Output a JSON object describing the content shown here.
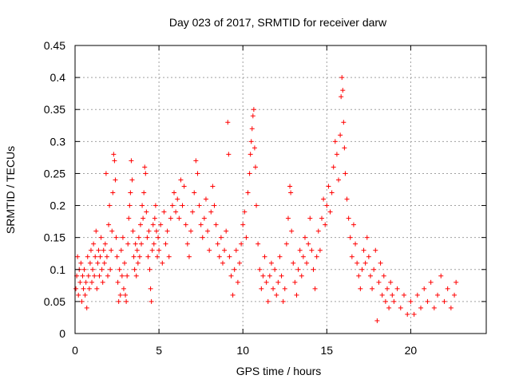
{
  "chart_data": {
    "type": "scatter",
    "title": "Day 023 of 2017, SRMTID for receiver darw",
    "xlabel": "GPS time / hours",
    "ylabel": "SRMTID / TECUs",
    "xlim": [
      0,
      24.5
    ],
    "ylim": [
      0,
      0.45
    ],
    "xticks": [
      0,
      5,
      10,
      15,
      20
    ],
    "xtick_labels": [
      "0",
      "5",
      "10",
      "15",
      "20"
    ],
    "yticks": [
      0,
      0.05,
      0.1,
      0.15,
      0.2,
      0.25,
      0.3,
      0.35,
      0.4,
      0.45
    ],
    "ytick_labels": [
      "0",
      "0.05",
      "0.1",
      "0.15",
      "0.2",
      "0.25",
      "0.3",
      "0.35",
      "0.4",
      "0.45"
    ],
    "grid": true,
    "marker": "+",
    "marker_color": "#ff0000",
    "series": [
      {
        "name": "SRMTID",
        "points": [
          [
            0.05,
            0.07
          ],
          [
            0.1,
            0.09
          ],
          [
            0.15,
            0.12
          ],
          [
            0.2,
            0.06
          ],
          [
            0.25,
            0.1
          ],
          [
            0.3,
            0.08
          ],
          [
            0.35,
            0.11
          ],
          [
            0.4,
            0.05
          ],
          [
            0.45,
            0.09
          ],
          [
            0.5,
            0.07
          ],
          [
            0.55,
            0.1
          ],
          [
            0.6,
            0.06
          ],
          [
            0.65,
            0.08
          ],
          [
            0.7,
            0.04
          ],
          [
            0.75,
            0.12
          ],
          [
            0.8,
            0.09
          ],
          [
            0.85,
            0.07
          ],
          [
            0.9,
            0.11
          ],
          [
            0.95,
            0.13
          ],
          [
            1.0,
            0.08
          ],
          [
            1.05,
            0.1
          ],
          [
            1.1,
            0.14
          ],
          [
            1.15,
            0.09
          ],
          [
            1.2,
            0.12
          ],
          [
            1.25,
            0.16
          ],
          [
            1.3,
            0.07
          ],
          [
            1.35,
            0.11
          ],
          [
            1.4,
            0.13
          ],
          [
            1.45,
            0.09
          ],
          [
            1.5,
            0.12
          ],
          [
            1.55,
            0.15
          ],
          [
            1.6,
            0.1
          ],
          [
            1.65,
            0.08
          ],
          [
            1.7,
            0.13
          ],
          [
            1.75,
            0.11
          ],
          [
            1.8,
            0.14
          ],
          [
            1.85,
            0.25
          ],
          [
            1.9,
            0.12
          ],
          [
            1.95,
            0.09
          ],
          [
            2.0,
            0.17
          ],
          [
            2.05,
            0.2
          ],
          [
            2.1,
            0.1
          ],
          [
            2.15,
            0.13
          ],
          [
            2.2,
            0.16
          ],
          [
            2.25,
            0.22
          ],
          [
            2.3,
            0.28
          ],
          [
            2.35,
            0.27
          ],
          [
            2.4,
            0.24
          ],
          [
            2.45,
            0.15
          ],
          [
            2.5,
            0.12
          ],
          [
            2.55,
            0.08
          ],
          [
            2.6,
            0.05
          ],
          [
            2.65,
            0.1
          ],
          [
            2.7,
            0.06
          ],
          [
            2.75,
            0.13
          ],
          [
            2.8,
            0.09
          ],
          [
            2.85,
            0.15
          ],
          [
            2.9,
            0.07
          ],
          [
            2.95,
            0.11
          ],
          [
            3.0,
            0.06
          ],
          [
            3.05,
            0.05
          ],
          [
            3.1,
            0.09
          ],
          [
            3.15,
            0.14
          ],
          [
            3.2,
            0.18
          ],
          [
            3.25,
            0.2
          ],
          [
            3.3,
            0.22
          ],
          [
            3.35,
            0.27
          ],
          [
            3.4,
            0.24
          ],
          [
            3.45,
            0.16
          ],
          [
            3.5,
            0.12
          ],
          [
            3.55,
            0.1
          ],
          [
            3.6,
            0.14
          ],
          [
            3.65,
            0.09
          ],
          [
            3.7,
            0.13
          ],
          [
            3.75,
            0.11
          ],
          [
            3.8,
            0.15
          ],
          [
            3.85,
            0.12
          ],
          [
            3.9,
            0.17
          ],
          [
            3.95,
            0.14
          ],
          [
            4.0,
            0.2
          ],
          [
            4.05,
            0.18
          ],
          [
            4.1,
            0.22
          ],
          [
            4.15,
            0.26
          ],
          [
            4.2,
            0.25
          ],
          [
            4.25,
            0.19
          ],
          [
            4.3,
            0.15
          ],
          [
            4.35,
            0.12
          ],
          [
            4.4,
            0.16
          ],
          [
            4.45,
            0.1
          ],
          [
            4.5,
            0.07
          ],
          [
            4.55,
            0.05
          ],
          [
            4.6,
            0.13
          ],
          [
            4.65,
            0.17
          ],
          [
            4.7,
            0.14
          ],
          [
            4.75,
            0.18
          ],
          [
            4.8,
            0.2
          ],
          [
            4.85,
            0.16
          ],
          [
            4.9,
            0.12
          ],
          [
            4.95,
            0.15
          ],
          [
            5.0,
            0.13
          ],
          [
            5.1,
            0.17
          ],
          [
            5.2,
            0.11
          ],
          [
            5.3,
            0.19
          ],
          [
            5.4,
            0.14
          ],
          [
            5.5,
            0.16
          ],
          [
            5.6,
            0.12
          ],
          [
            5.7,
            0.18
          ],
          [
            5.8,
            0.2
          ],
          [
            5.9,
            0.22
          ],
          [
            6.0,
            0.19
          ],
          [
            6.1,
            0.21
          ],
          [
            6.2,
            0.18
          ],
          [
            6.3,
            0.24
          ],
          [
            6.4,
            0.2
          ],
          [
            6.5,
            0.23
          ],
          [
            6.6,
            0.17
          ],
          [
            6.7,
            0.14
          ],
          [
            6.8,
            0.12
          ],
          [
            6.9,
            0.16
          ],
          [
            7.0,
            0.19
          ],
          [
            7.1,
            0.22
          ],
          [
            7.2,
            0.27
          ],
          [
            7.3,
            0.25
          ],
          [
            7.4,
            0.2
          ],
          [
            7.5,
            0.17
          ],
          [
            7.6,
            0.15
          ],
          [
            7.7,
            0.18
          ],
          [
            7.8,
            0.21
          ],
          [
            7.9,
            0.16
          ],
          [
            8.0,
            0.13
          ],
          [
            8.1,
            0.19
          ],
          [
            8.2,
            0.23
          ],
          [
            8.3,
            0.2
          ],
          [
            8.4,
            0.17
          ],
          [
            8.5,
            0.14
          ],
          [
            8.6,
            0.12
          ],
          [
            8.7,
            0.15
          ],
          [
            8.8,
            0.11
          ],
          [
            8.9,
            0.13
          ],
          [
            9.0,
            0.16
          ],
          [
            9.1,
            0.33
          ],
          [
            9.15,
            0.28
          ],
          [
            9.2,
            0.12
          ],
          [
            9.3,
            0.09
          ],
          [
            9.4,
            0.06
          ],
          [
            9.5,
            0.1
          ],
          [
            9.6,
            0.13
          ],
          [
            9.7,
            0.08
          ],
          [
            9.8,
            0.11
          ],
          [
            9.9,
            0.14
          ],
          [
            10.0,
            0.17
          ],
          [
            10.1,
            0.19
          ],
          [
            10.2,
            0.15
          ],
          [
            10.3,
            0.22
          ],
          [
            10.4,
            0.25
          ],
          [
            10.45,
            0.28
          ],
          [
            10.5,
            0.3
          ],
          [
            10.55,
            0.32
          ],
          [
            10.6,
            0.34
          ],
          [
            10.65,
            0.35
          ],
          [
            10.7,
            0.29
          ],
          [
            10.75,
            0.26
          ],
          [
            10.8,
            0.2
          ],
          [
            10.9,
            0.14
          ],
          [
            11.0,
            0.1
          ],
          [
            11.1,
            0.07
          ],
          [
            11.2,
            0.09
          ],
          [
            11.3,
            0.12
          ],
          [
            11.4,
            0.08
          ],
          [
            11.5,
            0.05
          ],
          [
            11.6,
            0.09
          ],
          [
            11.7,
            0.11
          ],
          [
            11.8,
            0.07
          ],
          [
            11.9,
            0.1
          ],
          [
            12.0,
            0.06
          ],
          [
            12.1,
            0.08
          ],
          [
            12.2,
            0.12
          ],
          [
            12.3,
            0.09
          ],
          [
            12.4,
            0.05
          ],
          [
            12.5,
            0.07
          ],
          [
            12.6,
            0.14
          ],
          [
            12.7,
            0.18
          ],
          [
            12.8,
            0.23
          ],
          [
            12.85,
            0.22
          ],
          [
            12.9,
            0.16
          ],
          [
            13.0,
            0.11
          ],
          [
            13.1,
            0.08
          ],
          [
            13.2,
            0.06
          ],
          [
            13.3,
            0.1
          ],
          [
            13.4,
            0.13
          ],
          [
            13.5,
            0.09
          ],
          [
            13.6,
            0.12
          ],
          [
            13.7,
            0.15
          ],
          [
            13.8,
            0.11
          ],
          [
            13.9,
            0.14
          ],
          [
            14.0,
            0.18
          ],
          [
            14.1,
            0.13
          ],
          [
            14.2,
            0.1
          ],
          [
            14.3,
            0.07
          ],
          [
            14.4,
            0.12
          ],
          [
            14.5,
            0.16
          ],
          [
            14.6,
            0.13
          ],
          [
            14.7,
            0.18
          ],
          [
            14.8,
            0.21
          ],
          [
            14.9,
            0.17
          ],
          [
            15.0,
            0.2
          ],
          [
            15.1,
            0.23
          ],
          [
            15.2,
            0.19
          ],
          [
            15.3,
            0.22
          ],
          [
            15.4,
            0.26
          ],
          [
            15.5,
            0.3
          ],
          [
            15.6,
            0.28
          ],
          [
            15.7,
            0.24
          ],
          [
            15.8,
            0.31
          ],
          [
            15.85,
            0.37
          ],
          [
            15.9,
            0.4
          ],
          [
            15.95,
            0.38
          ],
          [
            16.0,
            0.33
          ],
          [
            16.05,
            0.29
          ],
          [
            16.1,
            0.25
          ],
          [
            16.2,
            0.21
          ],
          [
            16.3,
            0.18
          ],
          [
            16.4,
            0.15
          ],
          [
            16.5,
            0.12
          ],
          [
            16.6,
            0.17
          ],
          [
            16.7,
            0.14
          ],
          [
            16.8,
            0.11
          ],
          [
            16.9,
            0.09
          ],
          [
            17.0,
            0.07
          ],
          [
            17.1,
            0.1
          ],
          [
            17.2,
            0.13
          ],
          [
            17.3,
            0.11
          ],
          [
            17.4,
            0.15
          ],
          [
            17.5,
            0.12
          ],
          [
            17.6,
            0.09
          ],
          [
            17.7,
            0.07
          ],
          [
            17.8,
            0.1
          ],
          [
            17.9,
            0.13
          ],
          [
            18.0,
            0.02
          ],
          [
            18.1,
            0.08
          ],
          [
            18.2,
            0.11
          ],
          [
            18.3,
            0.06
          ],
          [
            18.4,
            0.09
          ],
          [
            18.5,
            0.05
          ],
          [
            18.6,
            0.07
          ],
          [
            18.7,
            0.04
          ],
          [
            18.8,
            0.08
          ],
          [
            18.9,
            0.06
          ],
          [
            19.0,
            0.05
          ],
          [
            19.2,
            0.07
          ],
          [
            19.4,
            0.04
          ],
          [
            19.6,
            0.06
          ],
          [
            19.8,
            0.03
          ],
          [
            20.0,
            0.05
          ],
          [
            20.2,
            0.03
          ],
          [
            20.4,
            0.06
          ],
          [
            20.6,
            0.04
          ],
          [
            20.8,
            0.07
          ],
          [
            21.0,
            0.05
          ],
          [
            21.2,
            0.08
          ],
          [
            21.4,
            0.04
          ],
          [
            21.6,
            0.06
          ],
          [
            21.8,
            0.09
          ],
          [
            22.0,
            0.05
          ],
          [
            22.2,
            0.07
          ],
          [
            22.4,
            0.04
          ],
          [
            22.6,
            0.06
          ],
          [
            22.7,
            0.08
          ]
        ]
      }
    ]
  }
}
